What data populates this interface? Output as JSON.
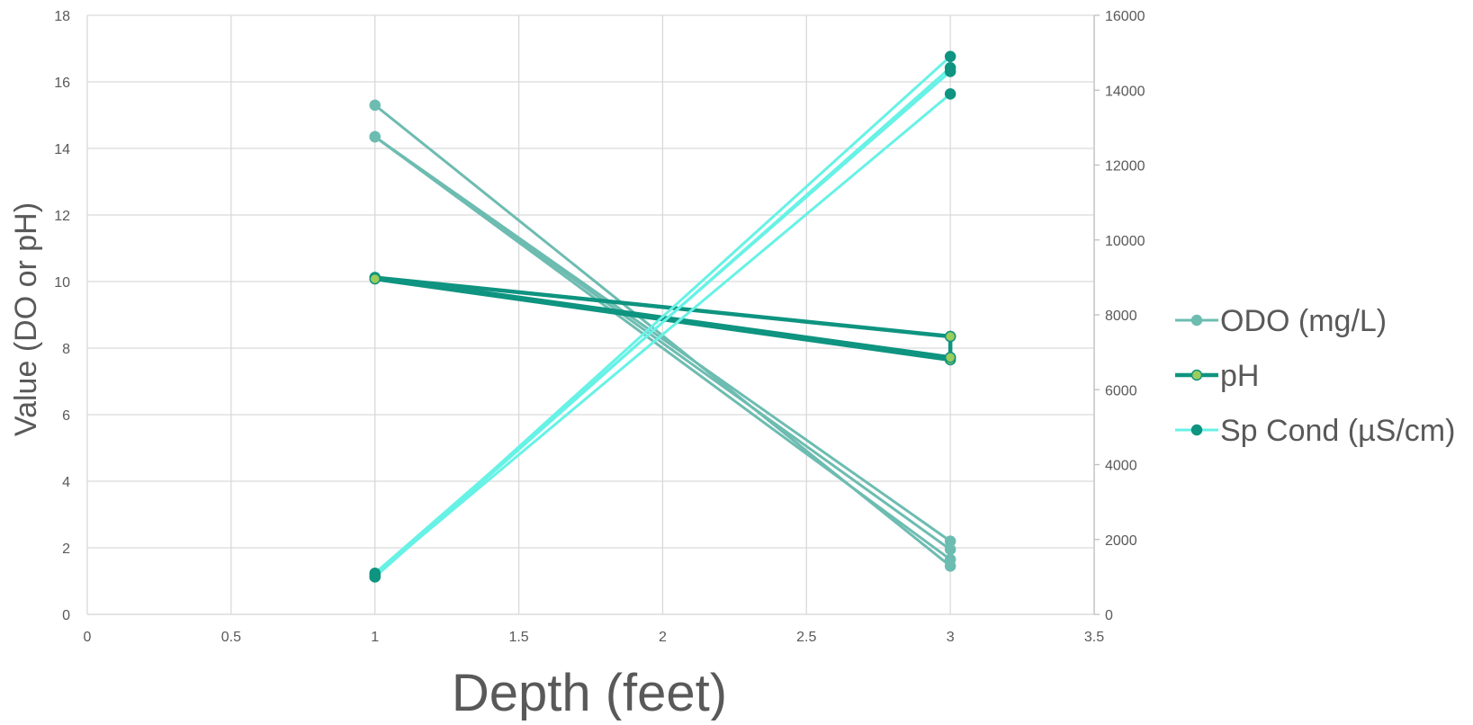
{
  "chart_data": {
    "type": "line",
    "title": "",
    "xlabel": "Depth (feet)",
    "ylabel": "Value (DO or pH)",
    "xlim": [
      0,
      3.5
    ],
    "ylim": [
      0,
      18
    ],
    "y2lim": [
      0,
      16000
    ],
    "x_ticks": [
      "0",
      "0.5",
      "1",
      "1.5",
      "2",
      "2.5",
      "3",
      "3.5"
    ],
    "y_ticks": [
      "0",
      "2",
      "4",
      "6",
      "8",
      "10",
      "12",
      "14",
      "16",
      "18"
    ],
    "y2_ticks": [
      "0",
      "2000",
      "4000",
      "6000",
      "8000",
      "10000",
      "12000",
      "14000",
      "16000"
    ],
    "grid": true,
    "legend_position": "right",
    "series": [
      {
        "name": "ODO (mg/L)",
        "axis": "left",
        "color": "#6dbcb1",
        "marker_fill": "#6dbcb1",
        "marker_stroke": "#6dbcb1",
        "segments": [
          [
            [
              1,
              15.3
            ],
            [
              3,
              1.45
            ]
          ],
          [
            [
              1,
              14.35
            ],
            [
              3,
              1.95
            ]
          ],
          [
            [
              1,
              14.35
            ],
            [
              3,
              2.2
            ]
          ],
          [
            [
              1,
              14.35
            ],
            [
              3,
              1.65
            ]
          ]
        ]
      },
      {
        "name": "pH",
        "axis": "left",
        "color": "#0e9480",
        "marker_fill": "#9ccc5a",
        "marker_stroke": "#0e9480",
        "segments": [
          [
            [
              1,
              10.12
            ],
            [
              3,
              8.35
            ]
          ],
          [
            [
              1,
              10.12
            ],
            [
              3,
              7.72
            ]
          ],
          [
            [
              1,
              10.08
            ],
            [
              3,
              7.65
            ]
          ],
          [
            [
              3,
              8.35
            ],
            [
              3,
              7.72
            ]
          ]
        ]
      },
      {
        "name": "Sp Cond (µS/cm)",
        "axis": "right",
        "color": "#67f2e6",
        "marker_fill": "#0e9480",
        "marker_stroke": "#0e9480",
        "segments": [
          [
            [
              1,
              1050
            ],
            [
              3,
              13900
            ]
          ],
          [
            [
              1,
              1000
            ],
            [
              3,
              14600
            ]
          ],
          [
            [
              1,
              1100
            ],
            [
              3,
              14500
            ]
          ],
          [
            [
              1,
              1000
            ],
            [
              3,
              14900
            ]
          ]
        ]
      }
    ]
  }
}
